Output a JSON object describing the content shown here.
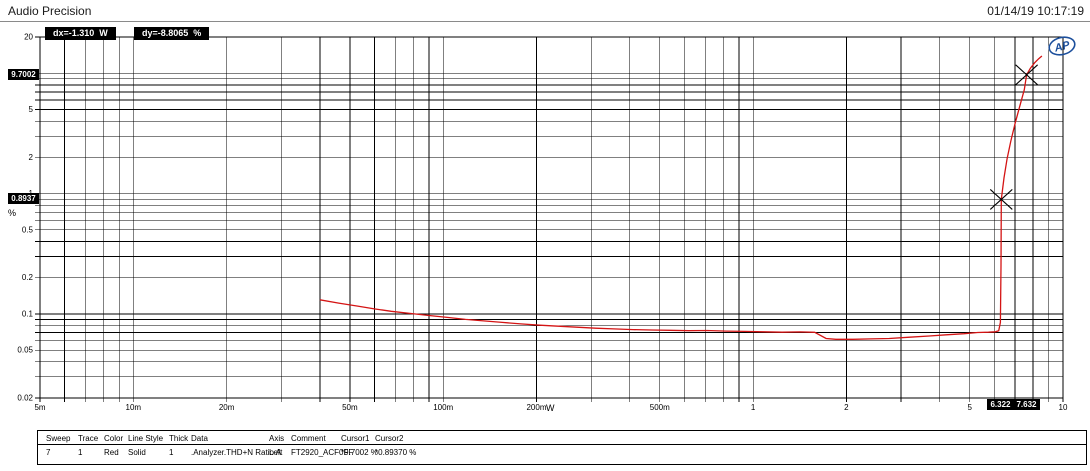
{
  "header": {
    "app_title": "Audio Precision",
    "timestamp": "01/14/19 10:17:19"
  },
  "cursor_readout": {
    "dx": "dx=-1.310  W",
    "dy": "dy=-8.8065  %"
  },
  "logo": {
    "text": "AP",
    "color": "#1c4f9c"
  },
  "chart_data": {
    "type": "line",
    "title": "",
    "xlabel": "W",
    "ylabel": "%",
    "grid": true,
    "x_axis": {
      "unit": "W",
      "scale": "log",
      "min": 0.005,
      "max": 10,
      "ticks": [
        {
          "value": 0.005,
          "label": "5m"
        },
        {
          "value": 0.01,
          "label": "10m"
        },
        {
          "value": 0.02,
          "label": "20m"
        },
        {
          "value": 0.05,
          "label": "50m"
        },
        {
          "value": 0.1,
          "label": "100m"
        },
        {
          "value": 0.2,
          "label": "200m"
        },
        {
          "value": 0.5,
          "label": "500m"
        },
        {
          "value": 1,
          "label": "1"
        },
        {
          "value": 2,
          "label": "2"
        },
        {
          "value": 5,
          "label": "5"
        },
        {
          "value": 10,
          "label": "10"
        }
      ]
    },
    "y_axis": {
      "unit": "%",
      "scale": "log",
      "min": 0.02,
      "max": 20,
      "ticks": [
        {
          "value": 20,
          "label": "20"
        },
        {
          "value": 5,
          "label": "5"
        },
        {
          "value": 2,
          "label": "2"
        },
        {
          "value": 1,
          "label": "1"
        },
        {
          "value": 0.5,
          "label": "0.5"
        },
        {
          "value": 0.2,
          "label": "0.2"
        },
        {
          "value": 0.1,
          "label": "0.1"
        },
        {
          "value": 0.05,
          "label": "0.05"
        },
        {
          "value": 0.02,
          "label": "0.02"
        }
      ]
    },
    "series": [
      {
        "name": ".Analyzer.THD+N Ratio A",
        "color": "#d41414",
        "points": [
          [
            0.04,
            0.131
          ],
          [
            0.046,
            0.123
          ],
          [
            0.053,
            0.116
          ],
          [
            0.06,
            0.11
          ],
          [
            0.068,
            0.105
          ],
          [
            0.078,
            0.101
          ],
          [
            0.09,
            0.097
          ],
          [
            0.103,
            0.0935
          ],
          [
            0.118,
            0.09
          ],
          [
            0.135,
            0.0875
          ],
          [
            0.155,
            0.085
          ],
          [
            0.178,
            0.0825
          ],
          [
            0.205,
            0.0805
          ],
          [
            0.235,
            0.079
          ],
          [
            0.27,
            0.0775
          ],
          [
            0.31,
            0.076
          ],
          [
            0.355,
            0.075
          ],
          [
            0.41,
            0.074
          ],
          [
            0.47,
            0.0735
          ],
          [
            0.54,
            0.073
          ],
          [
            0.62,
            0.0725
          ],
          [
            0.71,
            0.0728
          ],
          [
            0.82,
            0.072
          ],
          [
            0.94,
            0.0715
          ],
          [
            1.08,
            0.071
          ],
          [
            1.24,
            0.0705
          ],
          [
            1.42,
            0.0708
          ],
          [
            1.58,
            0.0703
          ],
          [
            1.72,
            0.0625
          ],
          [
            1.85,
            0.0615
          ],
          [
            2.1,
            0.0615
          ],
          [
            2.4,
            0.062
          ],
          [
            2.75,
            0.0625
          ],
          [
            3.2,
            0.064
          ],
          [
            3.7,
            0.0655
          ],
          [
            4.2,
            0.067
          ],
          [
            4.8,
            0.0685
          ],
          [
            5.3,
            0.07
          ],
          [
            5.75,
            0.0705
          ],
          [
            6.05,
            0.071
          ],
          [
            6.2,
            0.0725
          ],
          [
            6.28,
            0.085
          ],
          [
            6.31,
            0.25
          ],
          [
            6.322,
            0.8937
          ],
          [
            6.45,
            1.35
          ],
          [
            6.6,
            1.95
          ],
          [
            6.78,
            2.7
          ],
          [
            7.0,
            3.8
          ],
          [
            7.25,
            5.3
          ],
          [
            7.5,
            7.3
          ],
          [
            7.632,
            9.7002
          ],
          [
            7.85,
            11.0
          ],
          [
            8.1,
            12.2
          ],
          [
            8.35,
            13.2
          ],
          [
            8.55,
            13.9
          ]
        ]
      }
    ],
    "cursors": [
      {
        "name": "cursor1",
        "x": 7.632,
        "y": 9.7002,
        "x_label": "7.632",
        "y_label": "9.7002"
      },
      {
        "name": "cursor2",
        "x": 6.322,
        "y": 0.8937,
        "x_label": "6.322",
        "y_label": "0.8937"
      }
    ]
  },
  "table": {
    "headers": [
      "Sweep",
      "Trace",
      "Color",
      "Line Style",
      "Thick",
      "Data",
      "Axis",
      "Comment",
      "Cursor1",
      "Cursor2"
    ],
    "rows": [
      [
        "7",
        "1",
        "Red",
        "Solid",
        "1",
        ".Analyzer.THD+N Ratio A",
        "Left",
        "FT2920_ACF0FF",
        "*9.7002 %",
        "*0.89370 %"
      ]
    ]
  }
}
